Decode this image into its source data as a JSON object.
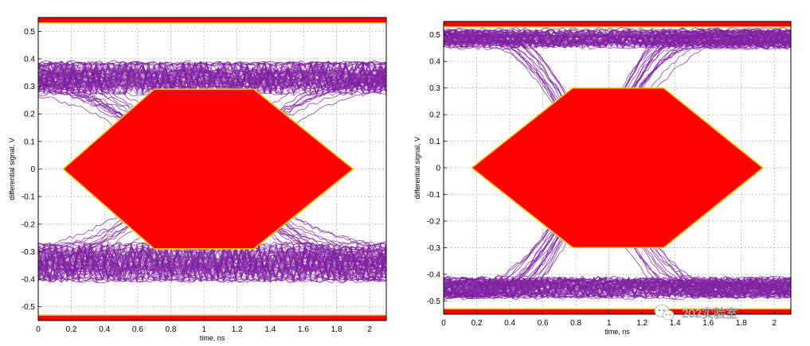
{
  "chart_data": [
    {
      "type": "line",
      "subtype": "eye-diagram",
      "xlabel": "time, ns",
      "ylabel": "differential signal, V",
      "xlim": [
        0,
        2.1
      ],
      "ylim": [
        -0.55,
        0.55
      ],
      "x_ticks": [
        0,
        0.2,
        0.4,
        0.6,
        0.8,
        1,
        1.2,
        1.4,
        1.6,
        1.8,
        2
      ],
      "x_tick_labels": [
        "0",
        "0.2",
        "0.4",
        "0.6",
        "0.8",
        "1",
        "1.2",
        "1.4",
        "1.6",
        "1.8",
        "2"
      ],
      "y_ticks": [
        0.5,
        0.4,
        0.3,
        0.2,
        0.1,
        0,
        -0.1,
        -0.2,
        -0.3,
        -0.4,
        -0.5
      ],
      "y_tick_labels": [
        "0.5",
        "0.4",
        "0.3",
        "0.2",
        "0.1",
        "0",
        "-0.1",
        "-0.2",
        "-0.3",
        "-0.4",
        "-0.5"
      ],
      "grid": true,
      "colors": {
        "trace": "#7f1fa0",
        "mask": "#ff0000",
        "mask_edge": "#ffcc00"
      },
      "mask": {
        "polygon": [
          [
            0.15,
            0
          ],
          [
            0.7,
            0.29
          ],
          [
            1.3,
            0.29
          ],
          [
            1.9,
            0
          ],
          [
            1.3,
            -0.29
          ],
          [
            0.7,
            -0.29
          ]
        ],
        "top_band": [
          0.53,
          0.55
        ],
        "bottom_band": [
          -0.55,
          -0.53
        ]
      },
      "signal": {
        "high_level": [
          0.27,
          0.39
        ],
        "low_level": [
          -0.41,
          -0.27
        ],
        "crossing_times": [
          0.0,
          2.0
        ],
        "eye_closed": true
      }
    },
    {
      "type": "line",
      "subtype": "eye-diagram",
      "xlabel": "time, ns",
      "ylabel": "differential signal, V",
      "xlim": [
        0,
        2.1
      ],
      "ylim": [
        -0.55,
        0.55
      ],
      "x_ticks": [
        0,
        0.2,
        0.4,
        0.6,
        0.8,
        1,
        1.2,
        1.4,
        1.6,
        1.8,
        2
      ],
      "x_tick_labels": [
        "0",
        "0.2",
        "0.4",
        "0.6",
        "0.8",
        "1",
        "1.2",
        "1.4",
        "1.6",
        "1.8",
        "2"
      ],
      "y_ticks": [
        0.5,
        0.4,
        0.3,
        0.2,
        0.1,
        0,
        -0.1,
        -0.2,
        -0.3,
        -0.4,
        -0.5
      ],
      "y_tick_labels": [
        "0.5",
        "0.4",
        "0.3",
        "0.2",
        "0.1",
        "0",
        "-0.1",
        "-0.2",
        "-0.3",
        "-0.4",
        "-0.5"
      ],
      "grid": true,
      "colors": {
        "trace": "#7f1fa0",
        "mask": "#ff0000",
        "mask_edge": "#ffcc00"
      },
      "mask": {
        "polygon": [
          [
            0.17,
            0
          ],
          [
            0.78,
            0.3
          ],
          [
            1.33,
            0.3
          ],
          [
            1.93,
            0
          ],
          [
            1.33,
            -0.3
          ],
          [
            0.78,
            -0.3
          ]
        ],
        "top_band": [
          0.53,
          0.55
        ],
        "bottom_band": [
          -0.55,
          -0.53
        ]
      },
      "signal": {
        "high_level": [
          0.45,
          0.52
        ],
        "low_level": [
          -0.49,
          -0.41
        ],
        "crossing_times": [
          0.0,
          1.83
        ],
        "eye_closed": false
      }
    }
  ],
  "watermark": {
    "text": "202实验室",
    "icon": "wechat-icon"
  }
}
